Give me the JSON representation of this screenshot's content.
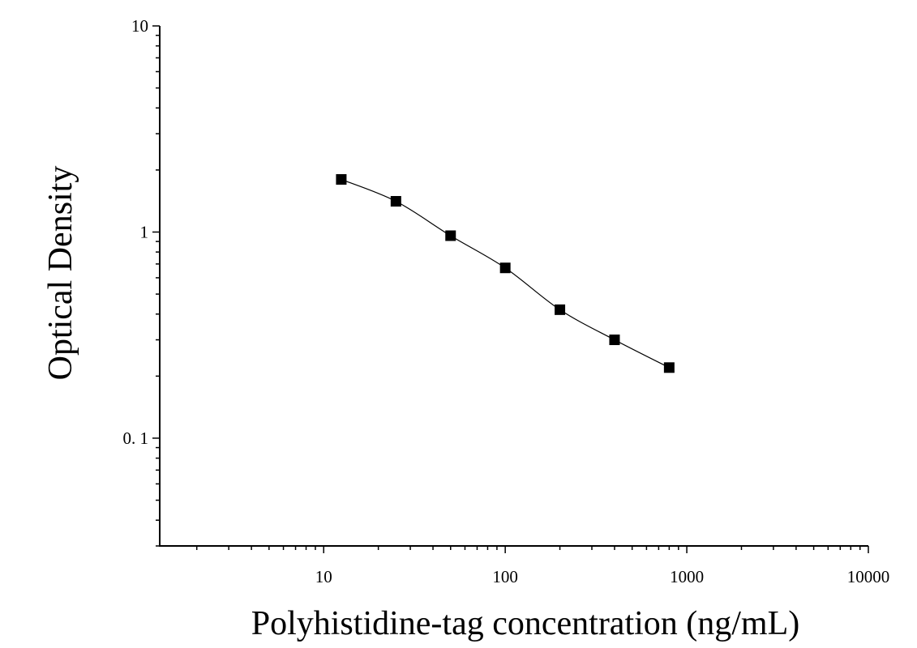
{
  "chart_data": {
    "type": "scatter",
    "title": "",
    "xlabel": "Polyhistidine-tag concentration (ng/mL)",
    "ylabel": "Optical Density",
    "x_scale": "log",
    "y_scale": "log",
    "xlim": [
      1.25,
      10000
    ],
    "ylim": [
      0.03,
      10
    ],
    "x_ticks": [
      {
        "value": 10,
        "label": "10"
      },
      {
        "value": 100,
        "label": "100"
      },
      {
        "value": 1000,
        "label": "1000"
      },
      {
        "value": 10000,
        "label": "10000"
      }
    ],
    "y_ticks": [
      {
        "value": 0.1,
        "label": "0. 1"
      },
      {
        "value": 1,
        "label": "1"
      },
      {
        "value": 10,
        "label": "10"
      }
    ],
    "grid": false,
    "legend": "none",
    "marker": "square",
    "marker_color": "#000000",
    "fit_curve": true,
    "series": [
      {
        "x": [
          12.5,
          25,
          50,
          100,
          200,
          400,
          800
        ],
        "y": [
          1.8,
          1.41,
          0.96,
          0.67,
          0.42,
          0.3,
          0.22
        ]
      }
    ]
  }
}
